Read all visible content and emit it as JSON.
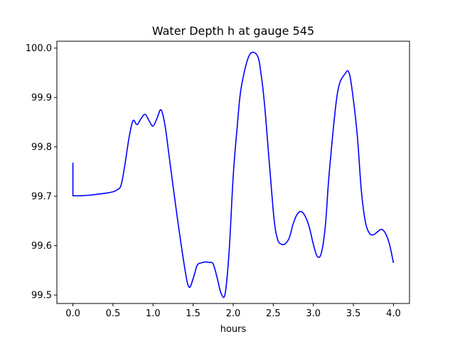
{
  "chart_data": {
    "type": "line",
    "title": "Water Depth h at gauge 545",
    "xlabel": "hours",
    "ylabel": "",
    "xlim": [
      -0.2,
      4.2
    ],
    "ylim": [
      99.4829,
      100.0139
    ],
    "xticks": [
      0.0,
      0.5,
      1.0,
      1.5,
      2.0,
      2.5,
      3.0,
      3.5,
      4.0
    ],
    "xtick_labels": [
      "0.0",
      "0.5",
      "1.0",
      "1.5",
      "2.0",
      "2.5",
      "3.0",
      "3.5",
      "4.0"
    ],
    "yticks": [
      99.5,
      99.6,
      99.7,
      99.8,
      99.9,
      100.0
    ],
    "ytick_labels": [
      "99.5",
      "99.6",
      "99.7",
      "99.8",
      "99.9",
      "100.0"
    ],
    "grid": false,
    "line_color": "#0000ff",
    "series": [
      {
        "x": [
          0.0,
          0.0,
          0.1,
          0.2,
          0.3,
          0.4,
          0.5,
          0.55,
          0.6,
          0.65,
          0.7,
          0.75,
          0.8,
          0.85,
          0.9,
          0.95,
          1.0,
          1.05,
          1.1,
          1.15,
          1.2,
          1.3,
          1.4,
          1.45,
          1.5,
          1.55,
          1.6,
          1.65,
          1.7,
          1.75,
          1.8,
          1.85,
          1.9,
          1.95,
          2.0,
          2.05,
          2.1,
          2.2,
          2.3,
          2.35,
          2.4,
          2.5,
          2.55,
          2.6,
          2.65,
          2.7,
          2.75,
          2.8,
          2.85,
          2.9,
          2.95,
          3.0,
          3.05,
          3.1,
          3.15,
          3.2,
          3.3,
          3.4,
          3.45,
          3.5,
          3.55,
          3.6,
          3.65,
          3.7,
          3.75,
          3.8,
          3.85,
          3.9,
          3.95,
          4.0
        ],
        "y": [
          99.768,
          99.701,
          99.701,
          99.702,
          99.704,
          99.706,
          99.709,
          99.713,
          99.722,
          99.765,
          99.818,
          99.853,
          99.845,
          99.857,
          99.866,
          99.853,
          99.842,
          99.858,
          99.875,
          99.843,
          99.782,
          99.66,
          99.55,
          99.516,
          99.533,
          99.56,
          99.565,
          99.567,
          99.566,
          99.563,
          99.535,
          99.503,
          99.503,
          99.59,
          99.74,
          99.84,
          99.92,
          99.985,
          99.985,
          99.945,
          99.87,
          99.67,
          99.615,
          99.603,
          99.604,
          99.616,
          99.645,
          99.664,
          99.669,
          99.659,
          99.637,
          99.603,
          99.578,
          99.585,
          99.64,
          99.75,
          99.908,
          99.949,
          99.948,
          99.895,
          99.82,
          99.71,
          99.648,
          99.625,
          99.622,
          99.628,
          99.633,
          99.625,
          99.603,
          99.565
        ]
      }
    ]
  }
}
